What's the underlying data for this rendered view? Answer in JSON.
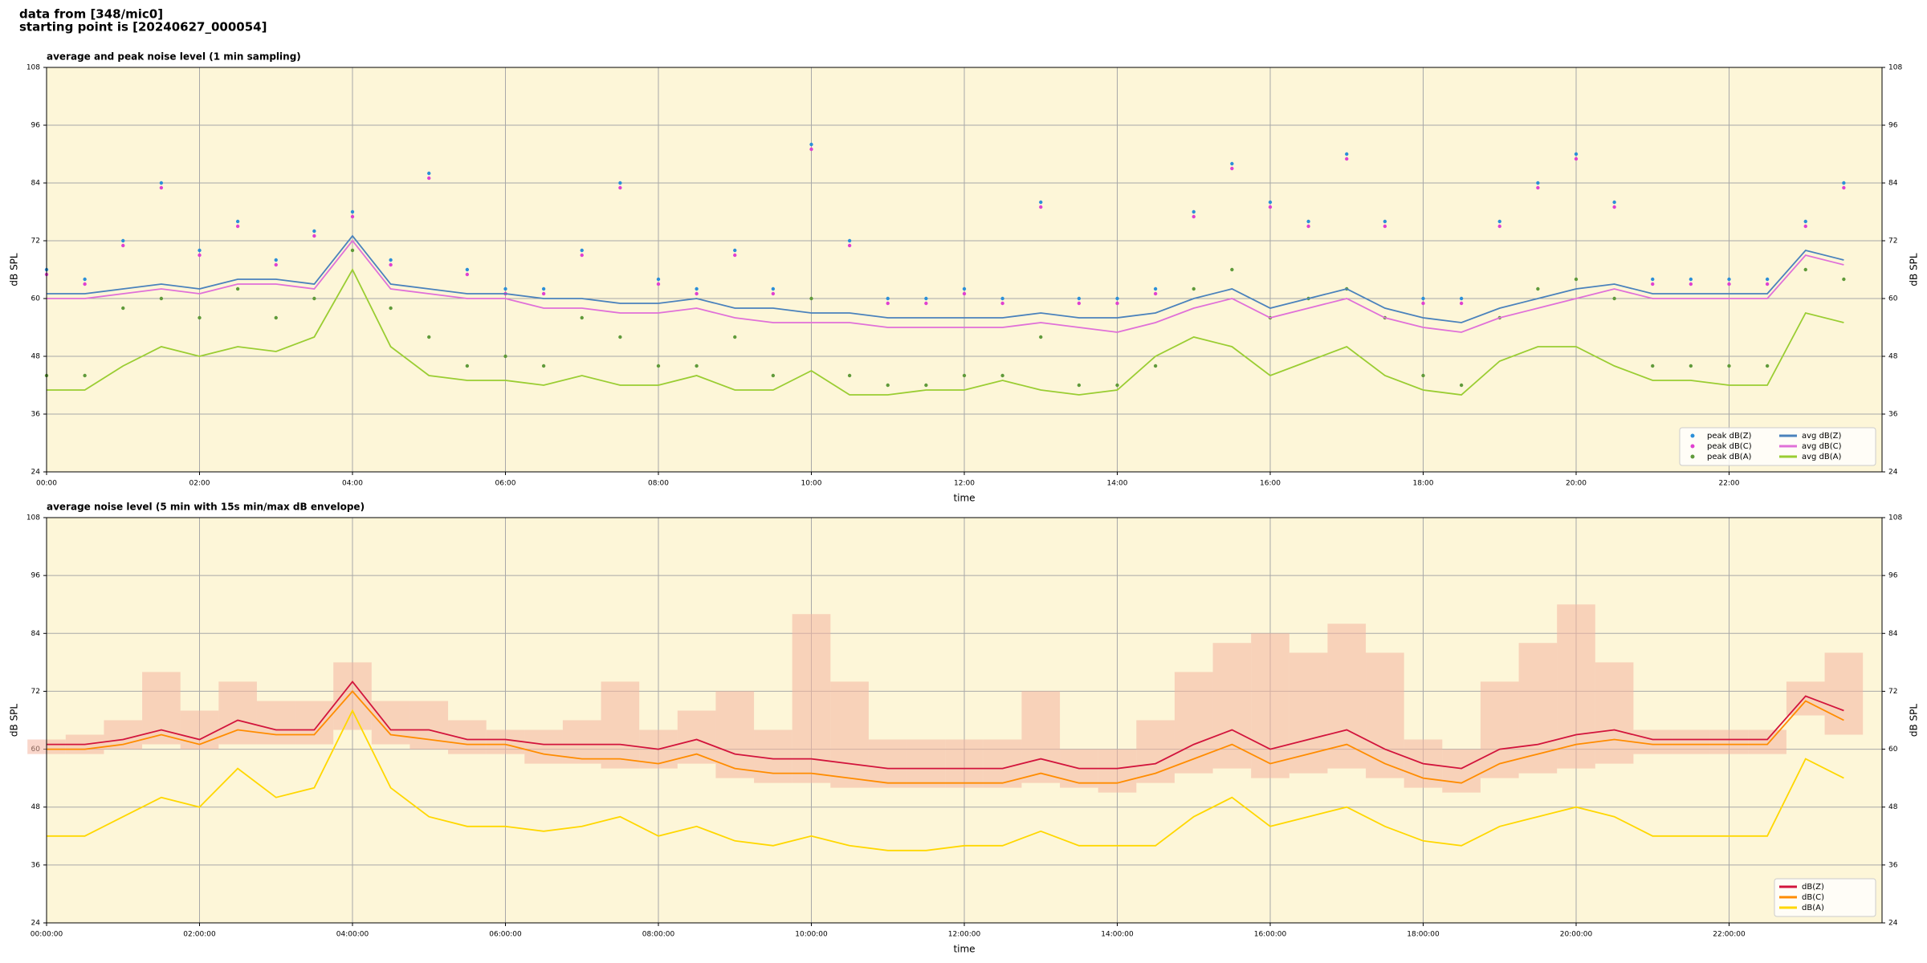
{
  "header": {
    "line1": "data from [348/mic0]",
    "line2": "starting point is [20240627_000054]"
  },
  "chart_data": [
    {
      "type": "line",
      "title": "average and peak noise level (1 min sampling)",
      "xlabel": "time",
      "ylabel": "dB SPL",
      "x": [
        0,
        0.5,
        1,
        1.5,
        2,
        2.5,
        3,
        3.5,
        4,
        4.5,
        5,
        5.5,
        6,
        6.5,
        7,
        7.5,
        8,
        8.5,
        9,
        9.5,
        10,
        10.5,
        11,
        11.5,
        12,
        12.5,
        13,
        13.5,
        14,
        14.5,
        15,
        15.5,
        16,
        16.5,
        17,
        17.5,
        18,
        18.5,
        19,
        19.5,
        20,
        20.5,
        21,
        21.5,
        22,
        22.5,
        23,
        23.5
      ],
      "xlim": [
        0,
        24
      ],
      "ylim": [
        24,
        108
      ],
      "yticks": [
        24,
        36,
        48,
        60,
        72,
        84,
        96,
        108
      ],
      "xticks": [
        {
          "value": 0,
          "label": "00:00"
        },
        {
          "value": 2,
          "label": "02:00"
        },
        {
          "value": 4,
          "label": "04:00"
        },
        {
          "value": 6,
          "label": "06:00"
        },
        {
          "value": 8,
          "label": "08:00"
        },
        {
          "value": 10,
          "label": "10:00"
        },
        {
          "value": 12,
          "label": "12:00"
        },
        {
          "value": 14,
          "label": "14:00"
        },
        {
          "value": 16,
          "label": "16:00"
        },
        {
          "value": 18,
          "label": "18:00"
        },
        {
          "value": 20,
          "label": "20:00"
        },
        {
          "value": 22,
          "label": "22:00"
        }
      ],
      "grid": true,
      "legend": "lower right",
      "legend_columns": 2,
      "background": "#fdf6d8",
      "series": [
        {
          "name": "peak dB(Z)",
          "style": "points",
          "color": "#2b8fd8",
          "values": [
            66,
            64,
            72,
            84,
            70,
            76,
            68,
            74,
            78,
            68,
            86,
            66,
            62,
            62,
            70,
            84,
            64,
            62,
            70,
            62,
            92,
            72,
            60,
            60,
            62,
            60,
            80,
            60,
            60,
            62,
            78,
            88,
            80,
            76,
            90,
            76,
            60,
            60,
            76,
            84,
            90,
            80,
            64,
            64,
            64,
            64,
            76,
            84
          ]
        },
        {
          "name": "peak dB(C)",
          "style": "points",
          "color": "#e040d0",
          "values": [
            65,
            63,
            71,
            83,
            69,
            75,
            67,
            73,
            77,
            67,
            85,
            65,
            61,
            61,
            69,
            83,
            63,
            61,
            69,
            61,
            91,
            71,
            59,
            59,
            61,
            59,
            79,
            59,
            59,
            61,
            77,
            87,
            79,
            75,
            89,
            75,
            59,
            59,
            75,
            83,
            89,
            79,
            63,
            63,
            63,
            63,
            75,
            83
          ]
        },
        {
          "name": "peak dB(A)",
          "style": "points",
          "color": "#5f9a3a",
          "values": [
            44,
            44,
            58,
            60,
            56,
            62,
            56,
            60,
            70,
            58,
            52,
            46,
            48,
            46,
            56,
            52,
            46,
            46,
            52,
            44,
            60,
            44,
            42,
            42,
            44,
            44,
            52,
            42,
            42,
            46,
            62,
            66,
            56,
            60,
            62,
            56,
            44,
            42,
            56,
            62,
            64,
            60,
            46,
            46,
            46,
            46,
            66,
            64
          ]
        },
        {
          "name": "avg dB(Z)",
          "style": "line",
          "color": "#4a82bc",
          "values": [
            61,
            61,
            62,
            63,
            62,
            64,
            64,
            63,
            73,
            63,
            62,
            61,
            61,
            60,
            60,
            59,
            59,
            60,
            58,
            58,
            57,
            57,
            56,
            56,
            56,
            56,
            57,
            56,
            56,
            57,
            60,
            62,
            58,
            60,
            62,
            58,
            56,
            55,
            58,
            60,
            62,
            63,
            61,
            61,
            61,
            61,
            70,
            68
          ]
        },
        {
          "name": "avg dB(C)",
          "style": "line",
          "color": "#e070d8",
          "values": [
            60,
            60,
            61,
            62,
            61,
            63,
            63,
            62,
            72,
            62,
            61,
            60,
            60,
            58,
            58,
            57,
            57,
            58,
            56,
            55,
            55,
            55,
            54,
            54,
            54,
            54,
            55,
            54,
            53,
            55,
            58,
            60,
            56,
            58,
            60,
            56,
            54,
            53,
            56,
            58,
            60,
            62,
            60,
            60,
            60,
            60,
            69,
            67
          ]
        },
        {
          "name": "avg dB(A)",
          "style": "line",
          "color": "#9acd32",
          "values": [
            41,
            41,
            46,
            50,
            48,
            50,
            49,
            52,
            66,
            50,
            44,
            43,
            43,
            42,
            44,
            42,
            42,
            44,
            41,
            41,
            45,
            40,
            40,
            41,
            41,
            43,
            41,
            40,
            41,
            48,
            52,
            50,
            44,
            47,
            50,
            44,
            41,
            40,
            47,
            50,
            50,
            46,
            43,
            43,
            42,
            42,
            57,
            55
          ]
        }
      ]
    },
    {
      "type": "line",
      "title": "average noise level (5 min with 15s min/max dB envelope)",
      "xlabel": "time",
      "ylabel": "dB SPL",
      "x": [
        0,
        0.5,
        1,
        1.5,
        2,
        2.5,
        3,
        3.5,
        4,
        4.5,
        5,
        5.5,
        6,
        6.5,
        7,
        7.5,
        8,
        8.5,
        9,
        9.5,
        10,
        10.5,
        11,
        11.5,
        12,
        12.5,
        13,
        13.5,
        14,
        14.5,
        15,
        15.5,
        16,
        16.5,
        17,
        17.5,
        18,
        18.5,
        19,
        19.5,
        20,
        20.5,
        21,
        21.5,
        22,
        22.5,
        23,
        23.5
      ],
      "xlim": [
        0,
        24
      ],
      "ylim": [
        24,
        108
      ],
      "yticks": [
        24,
        36,
        48,
        60,
        72,
        84,
        96,
        108
      ],
      "xticks": [
        {
          "value": 0,
          "label": "00:00:00"
        },
        {
          "value": 2,
          "label": "02:00:00"
        },
        {
          "value": 4,
          "label": "04:00:00"
        },
        {
          "value": 6,
          "label": "06:00:00"
        },
        {
          "value": 8,
          "label": "08:00:00"
        },
        {
          "value": 10,
          "label": "10:00:00"
        },
        {
          "value": 12,
          "label": "12:00:00"
        },
        {
          "value": 14,
          "label": "14:00:00"
        },
        {
          "value": 16,
          "label": "16:00:00"
        },
        {
          "value": 18,
          "label": "18:00:00"
        },
        {
          "value": 20,
          "label": "20:00:00"
        },
        {
          "value": 22,
          "label": "22:00:00"
        }
      ],
      "grid": true,
      "legend": "lower right",
      "legend_columns": 1,
      "background": "#fdf6d8",
      "envelope": {
        "color": "#f4b4a0",
        "max": [
          62,
          63,
          66,
          76,
          68,
          74,
          70,
          70,
          78,
          70,
          70,
          66,
          64,
          64,
          66,
          74,
          64,
          68,
          72,
          64,
          88,
          74,
          62,
          62,
          62,
          62,
          72,
          60,
          60,
          66,
          76,
          82,
          84,
          80,
          86,
          80,
          62,
          60,
          74,
          82,
          90,
          78,
          64,
          64,
          64,
          64,
          74,
          80
        ],
        "min": [
          59,
          59,
          60,
          61,
          60,
          61,
          61,
          61,
          64,
          61,
          60,
          59,
          59,
          57,
          57,
          56,
          56,
          57,
          54,
          53,
          53,
          52,
          52,
          52,
          52,
          52,
          53,
          52,
          51,
          53,
          55,
          56,
          54,
          55,
          56,
          54,
          52,
          51,
          54,
          55,
          56,
          57,
          59,
          59,
          59,
          59,
          67,
          63
        ]
      },
      "series": [
        {
          "name": "dB(Z)",
          "style": "line",
          "color": "#d2143c",
          "values": [
            61,
            61,
            62,
            64,
            62,
            66,
            64,
            64,
            74,
            64,
            64,
            62,
            62,
            61,
            61,
            61,
            60,
            62,
            59,
            58,
            58,
            57,
            56,
            56,
            56,
            56,
            58,
            56,
            56,
            57,
            61,
            64,
            60,
            62,
            64,
            60,
            57,
            56,
            60,
            61,
            63,
            64,
            62,
            62,
            62,
            62,
            71,
            68
          ]
        },
        {
          "name": "dB(C)",
          "style": "line",
          "color": "#ff8c00",
          "values": [
            60,
            60,
            61,
            63,
            61,
            64,
            63,
            63,
            72,
            63,
            62,
            61,
            61,
            59,
            58,
            58,
            57,
            59,
            56,
            55,
            55,
            54,
            53,
            53,
            53,
            53,
            55,
            53,
            53,
            55,
            58,
            61,
            57,
            59,
            61,
            57,
            54,
            53,
            57,
            59,
            61,
            62,
            61,
            61,
            61,
            61,
            70,
            66
          ]
        },
        {
          "name": "dB(A)",
          "style": "line",
          "color": "#ffd700",
          "values": [
            42,
            42,
            46,
            50,
            48,
            56,
            50,
            52,
            68,
            52,
            46,
            44,
            44,
            43,
            44,
            46,
            42,
            44,
            41,
            40,
            42,
            40,
            39,
            39,
            40,
            40,
            43,
            40,
            40,
            40,
            46,
            50,
            44,
            46,
            48,
            44,
            41,
            40,
            44,
            46,
            48,
            46,
            42,
            42,
            42,
            42,
            58,
            54
          ]
        }
      ]
    }
  ]
}
